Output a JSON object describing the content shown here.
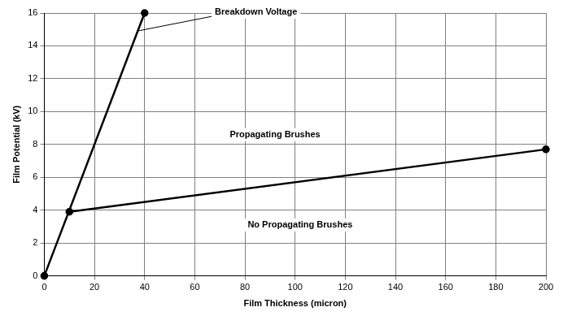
{
  "chart_data": {
    "type": "line",
    "x_label": "Film Thickness (micron)",
    "y_label": "Film Potential (kV)",
    "series": [
      {
        "x": [
          0,
          40
        ],
        "values": [
          0,
          16
        ],
        "color": "#000000",
        "marker": "circle",
        "line_style": "solid"
      },
      {
        "x": [
          10,
          200
        ],
        "values": [
          3.9,
          7.7
        ],
        "color": "#000000",
        "marker": "circle",
        "line_style": "solid"
      }
    ],
    "annotations": [
      {
        "text": "Breakdown Voltage",
        "x": 68,
        "y": 16.05,
        "arrow_from": [
          37,
          14.9
        ],
        "arrow_to": [
          67,
          15.8
        ]
      },
      {
        "text": "Propagating Brushes",
        "x": 92,
        "y": 8.6
      },
      {
        "text": "No Propagating Brushes",
        "x": 102,
        "y": 3.1
      }
    ],
    "xlim": [
      0,
      200
    ],
    "xticks": [
      0,
      20,
      40,
      60,
      80,
      100,
      120,
      140,
      160,
      180,
      200
    ],
    "ylim": [
      0,
      16
    ],
    "yticks": [
      0,
      2,
      4,
      6,
      8,
      10,
      12,
      14,
      16
    ],
    "grid": true
  }
}
